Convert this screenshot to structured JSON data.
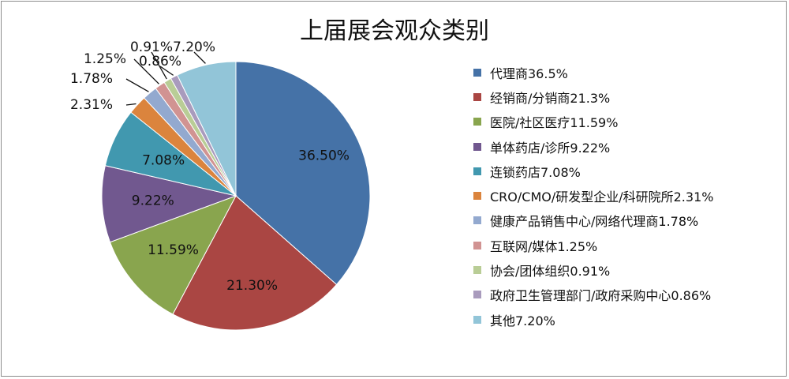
{
  "chart_data": {
    "type": "pie",
    "title": "上届展会观众类别",
    "categories": [
      "代理商",
      "经销商/分销商",
      "医院/社区医疗",
      "单体药店/诊所",
      "连锁药店",
      "CRO/CMO/研发型企业/科研院所",
      "健康产品销售中心/网络代理商",
      "互联网/媒体",
      "协会/团体组织",
      "政府卫生管理部门/政府采购中心",
      "其他"
    ],
    "values": [
      36.5,
      21.3,
      11.59,
      9.22,
      7.08,
      2.31,
      1.78,
      1.25,
      0.91,
      0.86,
      7.2
    ],
    "data_labels": [
      "36.50%",
      "21.30%",
      "11.59%",
      "9.22%",
      "7.08%",
      "2.31%",
      "1.78%",
      "1.25%",
      "0.91%",
      "0.86%",
      "7.20%"
    ],
    "legend_entries": [
      "代理商36.5%",
      "经销商/分销商21.3%",
      "医院/社区医疗11.59%",
      "单体药店/诊所9.22%",
      "连锁药店7.08%",
      "CRO/CMO/研发型企业/科研院所2.31%",
      "健康产品销售中心/网络代理商1.78%",
      "互联网/媒体1.25%",
      "协会/团体组织0.91%",
      "政府卫生管理部门/政府采购中心0.86%",
      "其他7.20%"
    ],
    "colors": [
      "#4572a7",
      "#aa4643",
      "#89a54e",
      "#71588f",
      "#4198af",
      "#db843d",
      "#93a9cf",
      "#d19392",
      "#b9cd96",
      "#a99bbd",
      "#92c5d8"
    ],
    "legend_position": "right",
    "start_angle": "12 o'clock, clockwise"
  }
}
